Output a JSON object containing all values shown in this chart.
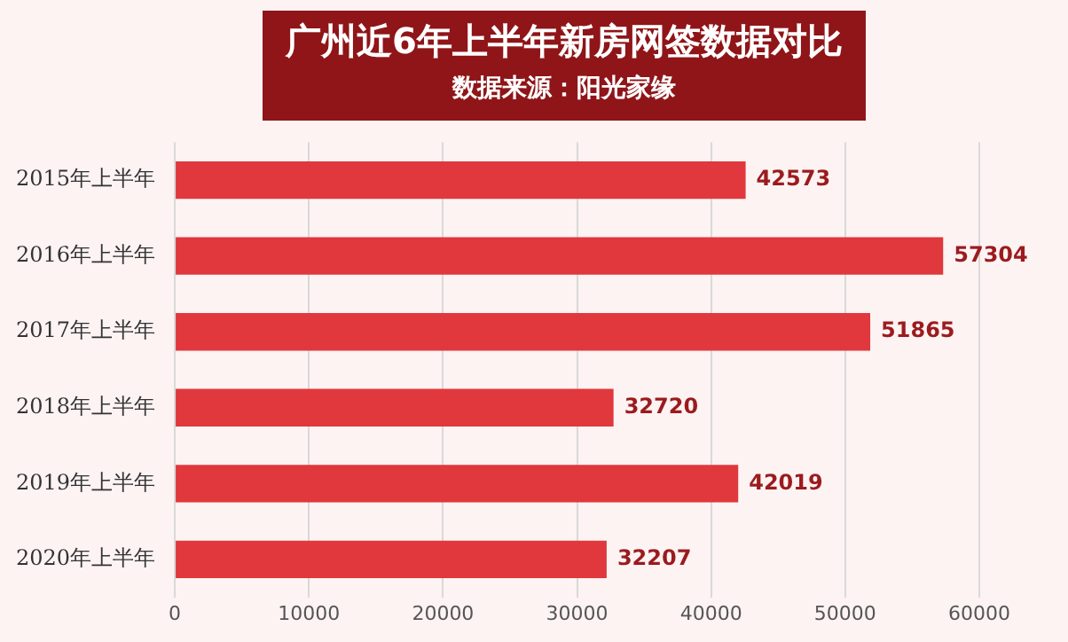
{
  "chart_data": {
    "type": "bar",
    "orientation": "horizontal",
    "title": "广州近6年上半年新房网签数据对比",
    "subtitle": "数据来源：阳光家缘",
    "categories": [
      "2015年上半年",
      "2016年上半年",
      "2017年上半年",
      "2018年上半年",
      "2019年上半年",
      "2020年上半年"
    ],
    "values": [
      42573,
      57304,
      51865,
      32720,
      42019,
      32207
    ],
    "color": "#e0383c",
    "xlim": [
      0,
      60000
    ],
    "xticks": [
      0,
      10000,
      20000,
      30000,
      40000,
      50000,
      60000
    ],
    "grid": "x",
    "data_labels": true,
    "legend": false
  }
}
